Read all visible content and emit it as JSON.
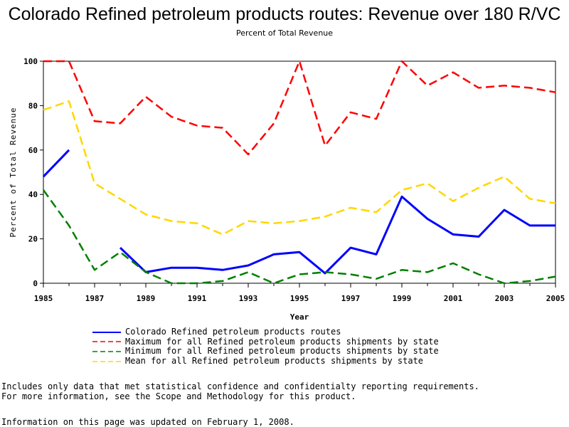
{
  "page": {
    "title": "Colorado Refined petroleum products routes: Revenue over 180 R/VC",
    "subtitle": "Percent of Total Revenue",
    "note_line1": "Includes only data that met statistical confidence and confidentialty reporting requirements.",
    "note_line2": "For more information, see the Scope and Methodology for this product.",
    "updated": "Information on this page was updated on February 1, 2008."
  },
  "chart_data": {
    "type": "line",
    "title": "Colorado Refined petroleum products routes: Revenue over 180 R/VC",
    "subtitle": "Percent of Total Revenue",
    "xlabel": "Year",
    "ylabel": "Percent of Total Revenue",
    "xlim": [
      1985,
      2005
    ],
    "ylim": [
      0,
      100
    ],
    "x_ticks": [
      "1985",
      "1987",
      "1989",
      "1991",
      "1993",
      "1995",
      "1997",
      "1999",
      "2001",
      "2003",
      "2005"
    ],
    "y_ticks": [
      "0",
      "20",
      "40",
      "60",
      "80",
      "100"
    ],
    "grid": false,
    "legend_placement": "bottom",
    "x": [
      1985,
      1986,
      1987,
      1988,
      1989,
      1990,
      1991,
      1992,
      1993,
      1994,
      1995,
      1996,
      1997,
      1998,
      1999,
      2000,
      2001,
      2002,
      2003,
      2004,
      2005
    ],
    "series": [
      {
        "name": "Colorado Refined petroleum products routes",
        "color": "#0000ff",
        "dash": "solid",
        "values": [
          48,
          60,
          null,
          16,
          5,
          7,
          7,
          6,
          8,
          13,
          14,
          4.5,
          16,
          13,
          39,
          29,
          22,
          21,
          33,
          26,
          26
        ]
      },
      {
        "name": "Maximum for all Refined petroleum products shipments by state",
        "color": "#ff0000",
        "dash": "dashed",
        "values": [
          100,
          100,
          73,
          72,
          84,
          75,
          71,
          70,
          58,
          72,
          100,
          62,
          77,
          74,
          100,
          89,
          95,
          88,
          89,
          88,
          86
        ]
      },
      {
        "name": "Minimum for all Refined petroleum products shipments by state",
        "color": "#008000",
        "dash": "dashed",
        "values": [
          42,
          26,
          6,
          14,
          5,
          0,
          0,
          1,
          5,
          0,
          4,
          5,
          4,
          2,
          6,
          5,
          9,
          4,
          0,
          1,
          3
        ]
      },
      {
        "name": "Mean for all Refined petroleum products shipments by state",
        "color": "#ffd700",
        "dash": "dashed",
        "values": [
          78,
          82,
          45,
          38,
          31,
          28,
          27,
          22,
          28,
          27,
          28,
          30,
          34,
          32,
          42,
          45,
          37,
          43,
          48,
          38,
          36
        ]
      }
    ]
  }
}
